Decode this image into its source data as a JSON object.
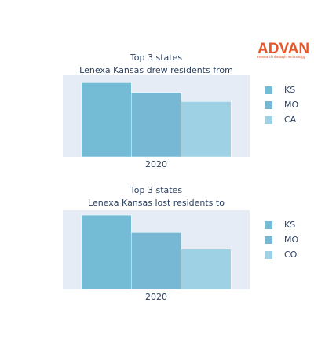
{
  "logo": {
    "text": "ADVAN",
    "tagline": "Research through Technology"
  },
  "chart_data": [
    {
      "type": "bar",
      "title": [
        "Top 3 states",
        "Lenexa Kansas drew residents from"
      ],
      "categories": [
        "2020"
      ],
      "series": [
        {
          "name": "KS",
          "color": "#74bcd6",
          "values": [
            91
          ]
        },
        {
          "name": "MO",
          "color": "#77b9d4",
          "values": [
            79
          ]
        },
        {
          "name": "CA",
          "color": "#9ed1e3",
          "values": [
            68
          ]
        }
      ],
      "ylim": [
        0,
        100
      ],
      "grid": false,
      "legend": "right"
    },
    {
      "type": "bar",
      "title": [
        "Top 3 states",
        "Lenexa Kansas lost residents to"
      ],
      "categories": [
        "2020"
      ],
      "series": [
        {
          "name": "KS",
          "color": "#74bcd6",
          "values": [
            94
          ]
        },
        {
          "name": "MO",
          "color": "#77b9d4",
          "values": [
            72
          ]
        },
        {
          "name": "CO",
          "color": "#9ed1e3",
          "values": [
            51
          ]
        }
      ],
      "ylim": [
        0,
        100
      ],
      "grid": false,
      "legend": "right"
    }
  ]
}
